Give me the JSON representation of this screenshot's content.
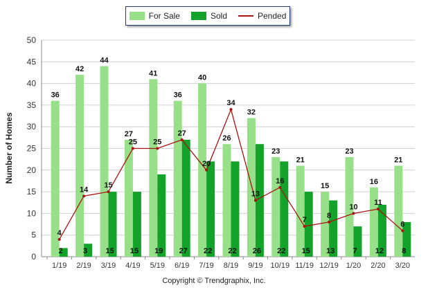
{
  "legend": {
    "for_sale": "For Sale",
    "sold": "Sold",
    "pended": "Pended"
  },
  "colors": {
    "for_sale": "#98df8a",
    "sold": "#13a22a",
    "pended": "#aa1111"
  },
  "copyright": "Copyright © Trendgraphix, Inc.",
  "chart_data": {
    "type": "bar",
    "categories": [
      "1/19",
      "2/19",
      "3/19",
      "4/19",
      "5/19",
      "6/19",
      "7/19",
      "8/19",
      "9/19",
      "10/19",
      "11/19",
      "12/19",
      "1/20",
      "2/20",
      "3/20"
    ],
    "series": [
      {
        "name": "For Sale",
        "type": "bar",
        "values": [
          36,
          42,
          44,
          27,
          41,
          36,
          40,
          26,
          32,
          23,
          21,
          15,
          23,
          16,
          21
        ]
      },
      {
        "name": "Sold",
        "type": "bar",
        "values": [
          2,
          3,
          15,
          15,
          19,
          27,
          22,
          22,
          26,
          22,
          15,
          13,
          7,
          12,
          8
        ]
      },
      {
        "name": "Pended",
        "type": "line",
        "values": [
          4,
          14,
          15,
          25,
          25,
          27,
          20,
          34,
          13,
          16,
          7,
          8,
          10,
          11,
          6
        ]
      }
    ],
    "xlabel": "",
    "ylabel": "Number of Homes",
    "ylim": [
      0,
      50
    ],
    "yticks": [
      0,
      5,
      10,
      15,
      20,
      25,
      30,
      35,
      40,
      45,
      50
    ],
    "grid": true,
    "legend_position": "top-center"
  }
}
